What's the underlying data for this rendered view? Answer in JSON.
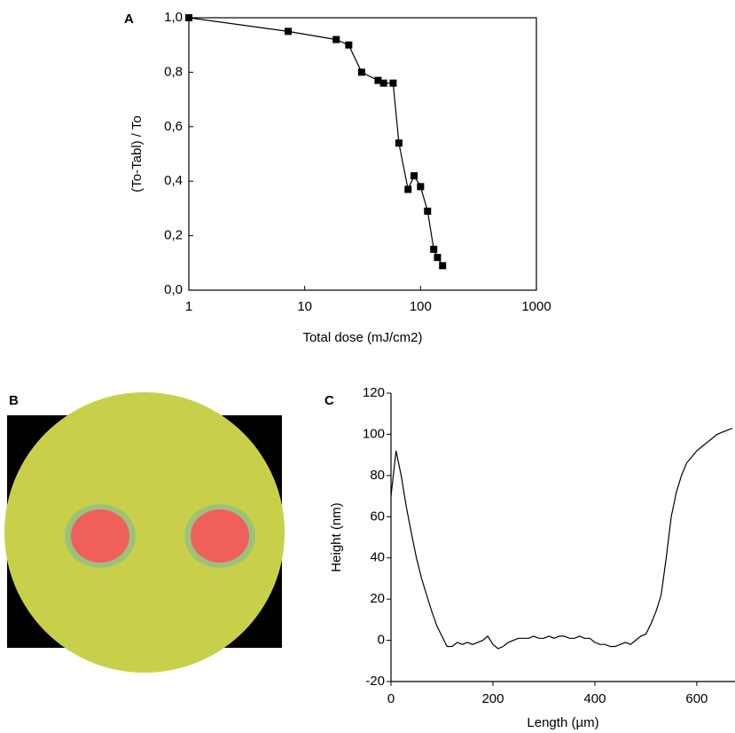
{
  "chart_data": [
    {
      "type": "line",
      "panel_label": "A",
      "x_label": "Total dose (mJ/cm2)",
      "y_label": "(To-Tabl) / To",
      "xscale": "log",
      "marker": "square",
      "color": "#000000",
      "x": [
        1,
        7.2,
        18.7,
        24,
        31,
        43,
        48,
        58,
        65,
        78,
        88,
        100,
        115,
        130,
        140,
        155
      ],
      "values": [
        1.0,
        0.95,
        0.92,
        0.9,
        0.8,
        0.77,
        0.76,
        0.76,
        0.54,
        0.37,
        0.42,
        0.38,
        0.29,
        0.15,
        0.12,
        0.09
      ],
      "xlim": [
        1,
        1000
      ],
      "xticks": [
        1,
        10,
        100,
        1000
      ],
      "ylim": [
        0,
        1.0
      ],
      "yticks": [
        {
          "value": 0,
          "label": "0,0"
        },
        {
          "value": 0.2,
          "label": "0,2"
        },
        {
          "value": 0.4,
          "label": "0,4"
        },
        {
          "value": 0.6,
          "label": "0,6"
        },
        {
          "value": 0.8,
          "label": "0,8"
        },
        {
          "value": 1.0,
          "label": "1,0"
        }
      ]
    },
    {
      "type": "line",
      "panel_label": "C",
      "x_label": "Length (µm)",
      "y_label": "Height (nm)",
      "marker": "none",
      "color": "#000000",
      "x": [
        0,
        10,
        20,
        30,
        40,
        50,
        60,
        70,
        80,
        90,
        100,
        110,
        120,
        130,
        140,
        150,
        160,
        170,
        180,
        190,
        200,
        210,
        220,
        230,
        240,
        250,
        260,
        270,
        280,
        290,
        300,
        310,
        320,
        330,
        340,
        350,
        360,
        370,
        380,
        390,
        400,
        410,
        420,
        430,
        440,
        450,
        460,
        470,
        480,
        490,
        500,
        510,
        520,
        530,
        540,
        550,
        560,
        570,
        580,
        590,
        600,
        610,
        620,
        630,
        640,
        650,
        660,
        670
      ],
      "values": [
        70,
        92,
        80,
        65,
        52,
        40,
        30,
        22,
        14,
        7,
        2,
        -3,
        -3,
        -1,
        -2,
        -1,
        -2,
        -1,
        0,
        2,
        -2,
        -4,
        -3,
        -1,
        0,
        1,
        1,
        1,
        2,
        1,
        1,
        2,
        1,
        2,
        2,
        1,
        1,
        2,
        1,
        1,
        -1,
        -2,
        -2,
        -3,
        -3,
        -2,
        -1,
        -2,
        0,
        2,
        3,
        8,
        14,
        22,
        40,
        60,
        72,
        80,
        86,
        89,
        92,
        94,
        96,
        98,
        100,
        101,
        102,
        103
      ],
      "xlim": [
        0,
        675
      ],
      "xticks": [
        0,
        200,
        400,
        600
      ],
      "ylim": [
        -20,
        120
      ],
      "yticks": [
        -20,
        0,
        20,
        40,
        60,
        80,
        100,
        120
      ]
    }
  ],
  "image_panel": {
    "label": "B"
  }
}
